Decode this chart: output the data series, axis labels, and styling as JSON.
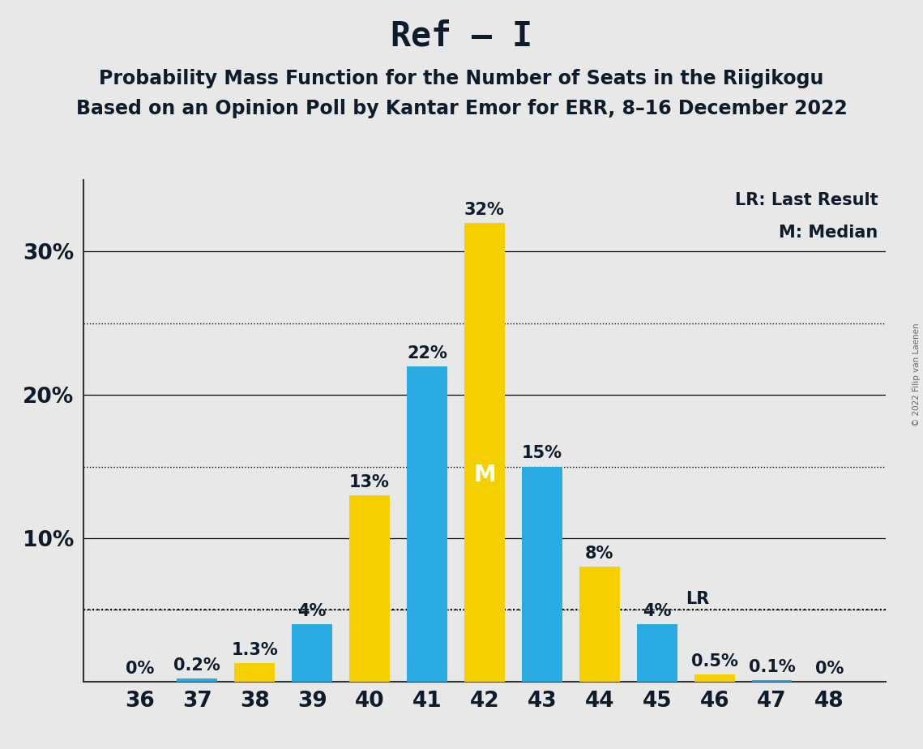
{
  "title": "Ref – I",
  "subtitle1": "Probability Mass Function for the Number of Seats in the Riigikogu",
  "subtitle2": "Based on an Opinion Poll by Kantar Emor for ERR, 8–16 December 2022",
  "copyright": "© 2022 Filip van Laenen",
  "legend_lr": "LR: Last Result",
  "legend_m": "M: Median",
  "seats": [
    36,
    37,
    38,
    39,
    40,
    41,
    42,
    43,
    44,
    45,
    46,
    47,
    48
  ],
  "values": [
    0.0,
    0.2,
    1.3,
    4.0,
    13.0,
    22.0,
    32.0,
    15.0,
    8.0,
    4.0,
    0.5,
    0.1,
    0.0
  ],
  "colors": [
    "#29abe2",
    "#29abe2",
    "#f5d000",
    "#29abe2",
    "#f5d000",
    "#29abe2",
    "#f5d000",
    "#29abe2",
    "#f5d000",
    "#29abe2",
    "#f5d000",
    "#29abe2",
    "#29abe2"
  ],
  "labels": [
    "0%",
    "0.2%",
    "1.3%",
    "4%",
    "13%",
    "22%",
    "32%",
    "15%",
    "8%",
    "4%",
    "0.5%",
    "0.1%",
    "0%"
  ],
  "median_seat": 42,
  "lr_seat": 45,
  "lr_level": 5.0,
  "blue_color": "#29abe2",
  "yellow_color": "#f5d000",
  "bg_color": "#e8e8e8",
  "label_color": "#0d1b2a",
  "ylim_max": 35,
  "yticks": [
    10,
    20,
    30
  ],
  "ytick_labels": [
    "10%",
    "20%",
    "30%"
  ],
  "solid_gridlines": [
    10,
    20,
    30
  ],
  "dotted_gridlines": [
    5,
    15,
    25
  ],
  "title_fontsize": 30,
  "subtitle_fontsize": 17,
  "bar_label_fontsize": 15,
  "tick_fontsize": 19,
  "legend_fontsize": 15
}
